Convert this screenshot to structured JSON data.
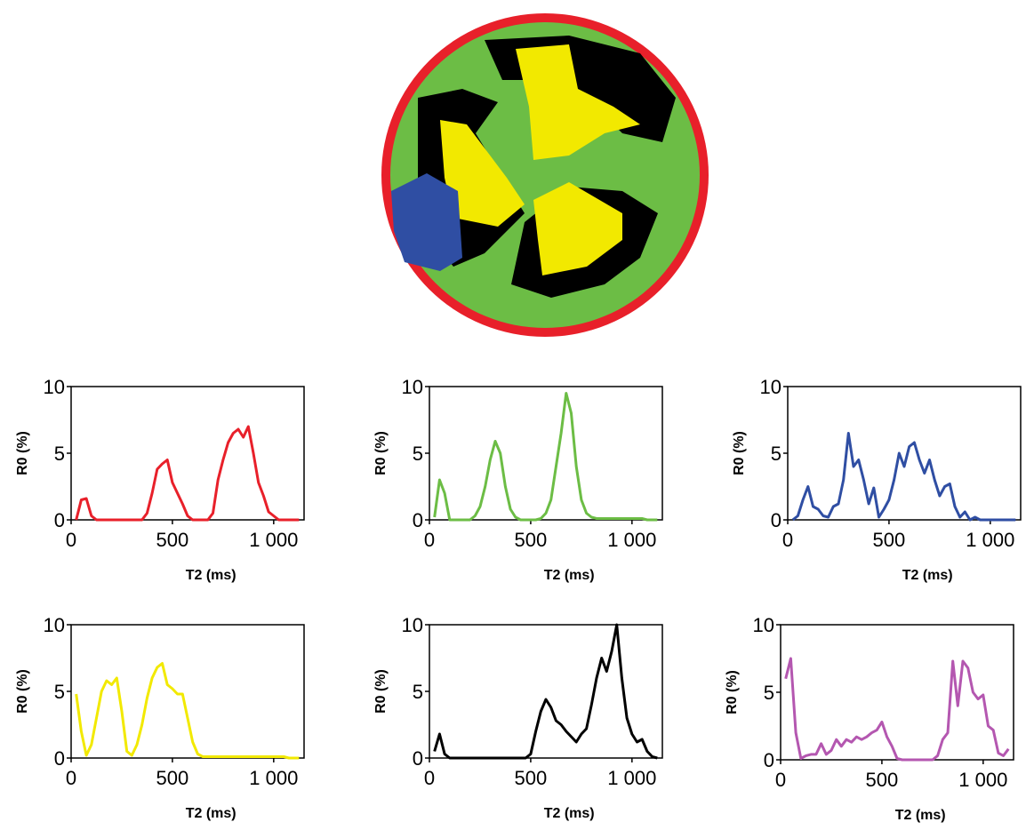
{
  "chart_data": [
    {
      "type": "line",
      "xlabel": "T2 (ms)",
      "ylabel": "R0 (%)",
      "xlim": [
        0,
        1150
      ],
      "ylim": [
        0,
        10
      ],
      "xticks": [
        0,
        500,
        {
          "value": 1000,
          "label": "1 000"
        }
      ],
      "yticks": [
        0,
        5,
        10
      ],
      "x": [
        25,
        50,
        75,
        100,
        125,
        150,
        175,
        200,
        225,
        250,
        275,
        300,
        325,
        350,
        375,
        400,
        425,
        450,
        475,
        500,
        525,
        550,
        575,
        600,
        625,
        650,
        675,
        700,
        725,
        750,
        775,
        800,
        825,
        850,
        875,
        900,
        925,
        950,
        975,
        1000,
        1025,
        1050,
        1075,
        1100,
        1125
      ],
      "series": [
        {
          "color": "#e8202a",
          "values": [
            0,
            1.5,
            1.6,
            0.3,
            0,
            0,
            0,
            0,
            0,
            0,
            0,
            0,
            0,
            0,
            0.5,
            2,
            3.8,
            4.2,
            4.5,
            2.8,
            2,
            1.2,
            0.3,
            0,
            0,
            0,
            0,
            0.5,
            3,
            4.5,
            5.8,
            6.5,
            6.8,
            6.2,
            7,
            5,
            2.8,
            1.8,
            0.6,
            0.3,
            0,
            0,
            0,
            0,
            0
          ]
        }
      ]
    },
    {
      "type": "line",
      "xlabel": "T2 (ms)",
      "ylabel": "R0 (%)",
      "xlim": [
        0,
        1150
      ],
      "ylim": [
        0,
        10
      ],
      "xticks": [
        0,
        500,
        {
          "value": 1000,
          "label": "1 000"
        }
      ],
      "yticks": [
        0,
        5,
        10
      ],
      "x": [
        25,
        50,
        75,
        100,
        125,
        150,
        175,
        200,
        225,
        250,
        275,
        300,
        325,
        350,
        375,
        400,
        425,
        450,
        475,
        500,
        525,
        550,
        575,
        600,
        625,
        650,
        675,
        700,
        725,
        750,
        775,
        800,
        825,
        850,
        875,
        900,
        925,
        950,
        975,
        1000,
        1025,
        1050,
        1075,
        1100,
        1125
      ],
      "series": [
        {
          "color": "#6cbd45",
          "values": [
            0.2,
            3,
            2,
            0,
            0,
            0,
            0,
            0,
            0.3,
            1,
            2.5,
            4.5,
            5.9,
            5,
            2.5,
            0.8,
            0.2,
            0,
            0,
            0,
            0,
            0.1,
            0.5,
            1.5,
            4,
            6.5,
            9.5,
            8,
            4,
            1.5,
            0.5,
            0.2,
            0.1,
            0.1,
            0.1,
            0.1,
            0.1,
            0.1,
            0.1,
            0.1,
            0.1,
            0.1,
            0,
            0,
            0
          ]
        }
      ]
    },
    {
      "type": "line",
      "xlabel": "T2 (ms)",
      "ylabel": "R0 (%)",
      "xlim": [
        0,
        1150
      ],
      "ylim": [
        0,
        10
      ],
      "xticks": [
        0,
        500,
        {
          "value": 1000,
          "label": "1 000"
        }
      ],
      "yticks": [
        0,
        5,
        10
      ],
      "x": [
        25,
        50,
        75,
        100,
        125,
        150,
        175,
        200,
        225,
        250,
        275,
        300,
        325,
        350,
        375,
        400,
        425,
        450,
        475,
        500,
        525,
        550,
        575,
        600,
        625,
        650,
        675,
        700,
        725,
        750,
        775,
        800,
        825,
        850,
        875,
        900,
        925,
        950,
        975,
        1000,
        1025,
        1050,
        1075,
        1100,
        1125
      ],
      "series": [
        {
          "color": "#2f4ea3",
          "values": [
            0,
            0.3,
            1.5,
            2.5,
            1,
            0.8,
            0.3,
            0.2,
            1,
            1.2,
            3,
            6.5,
            4,
            4.5,
            3,
            1.2,
            2.4,
            0.2,
            0.8,
            1.5,
            3,
            5,
            4,
            5.5,
            5.8,
            4.5,
            3.5,
            4.5,
            3,
            1.8,
            2.5,
            2.7,
            1,
            0.2,
            0.6,
            0,
            0.2,
            0,
            0,
            0,
            0,
            0,
            0,
            0,
            0
          ]
        }
      ]
    },
    {
      "type": "line",
      "xlabel": "T2 (ms)",
      "ylabel": "R0 (%)",
      "xlim": [
        0,
        1150
      ],
      "ylim": [
        0,
        10
      ],
      "xticks": [
        0,
        500,
        {
          "value": 1000,
          "label": "1 000"
        }
      ],
      "yticks": [
        0,
        5,
        10
      ],
      "x": [
        25,
        50,
        75,
        100,
        125,
        150,
        175,
        200,
        225,
        250,
        275,
        300,
        325,
        350,
        375,
        400,
        425,
        450,
        475,
        500,
        525,
        550,
        575,
        600,
        625,
        650,
        675,
        700,
        725,
        750,
        775,
        800,
        825,
        850,
        875,
        900,
        925,
        950,
        975,
        1000,
        1025,
        1050,
        1075,
        1100,
        1125
      ],
      "series": [
        {
          "color": "#f2e900",
          "values": [
            4.8,
            2,
            0.2,
            1,
            3,
            5,
            5.8,
            5.5,
            6,
            3.5,
            0.5,
            0.2,
            1,
            2.5,
            4.5,
            6,
            6.8,
            7.1,
            5.5,
            5.2,
            4.8,
            4.8,
            3,
            1.2,
            0.3,
            0.1,
            0.1,
            0.1,
            0.1,
            0.1,
            0.1,
            0.1,
            0.1,
            0.1,
            0.1,
            0.1,
            0.1,
            0.1,
            0.1,
            0.1,
            0.1,
            0.1,
            0,
            0,
            0
          ]
        }
      ]
    },
    {
      "type": "line",
      "xlabel": "T2 (ms)",
      "ylabel": "R0 (%)",
      "xlim": [
        0,
        1150
      ],
      "ylim": [
        0,
        10
      ],
      "xticks": [
        0,
        500,
        {
          "value": 1000,
          "label": "1 000"
        }
      ],
      "yticks": [
        0,
        5,
        10
      ],
      "x": [
        25,
        50,
        75,
        100,
        125,
        150,
        175,
        200,
        225,
        250,
        275,
        300,
        325,
        350,
        375,
        400,
        425,
        450,
        475,
        500,
        525,
        550,
        575,
        600,
        625,
        650,
        675,
        700,
        725,
        750,
        775,
        800,
        825,
        850,
        875,
        900,
        925,
        950,
        975,
        1000,
        1025,
        1050,
        1075,
        1100,
        1125
      ],
      "series": [
        {
          "color": "#000000",
          "values": [
            0.5,
            1.8,
            0.3,
            0,
            0,
            0,
            0,
            0,
            0,
            0,
            0,
            0,
            0,
            0,
            0,
            0,
            0,
            0,
            0,
            0.3,
            2,
            3.5,
            4.4,
            3.8,
            2.8,
            2.5,
            2,
            1.6,
            1.2,
            1.8,
            2.2,
            4,
            6,
            7.5,
            6.5,
            8,
            10,
            6,
            3,
            1.8,
            1.2,
            1.4,
            0.5,
            0.1,
            0
          ]
        }
      ]
    },
    {
      "type": "line",
      "xlabel": "T2 (ms)",
      "ylabel": "R0 (%)",
      "xlim": [
        0,
        1150
      ],
      "ylim": [
        0,
        10
      ],
      "xticks": [
        0,
        500,
        {
          "value": 1000,
          "label": "1 000"
        }
      ],
      "yticks": [
        0,
        5,
        10
      ],
      "x": [
        25,
        50,
        75,
        100,
        125,
        150,
        175,
        200,
        225,
        250,
        275,
        300,
        325,
        350,
        375,
        400,
        425,
        450,
        475,
        500,
        525,
        550,
        575,
        600,
        625,
        650,
        675,
        700,
        725,
        750,
        775,
        800,
        825,
        850,
        875,
        900,
        925,
        950,
        975,
        1000,
        1025,
        1050,
        1075,
        1100,
        1125
      ],
      "series": [
        {
          "color": "#b457b0",
          "values": [
            6,
            7.5,
            2,
            0.1,
            0.3,
            0.4,
            0.4,
            1.2,
            0.4,
            0.7,
            1.5,
            1,
            1.5,
            1.3,
            1.7,
            1.5,
            1.7,
            2,
            2.2,
            2.8,
            1.7,
            1,
            0.1,
            0,
            0,
            0,
            0,
            0,
            0,
            0,
            0.3,
            1.5,
            2,
            7.3,
            4,
            7.3,
            6.8,
            5,
            4.5,
            4.8,
            2.5,
            2.2,
            0.5,
            0.3,
            0.8
          ]
        }
      ]
    }
  ]
}
